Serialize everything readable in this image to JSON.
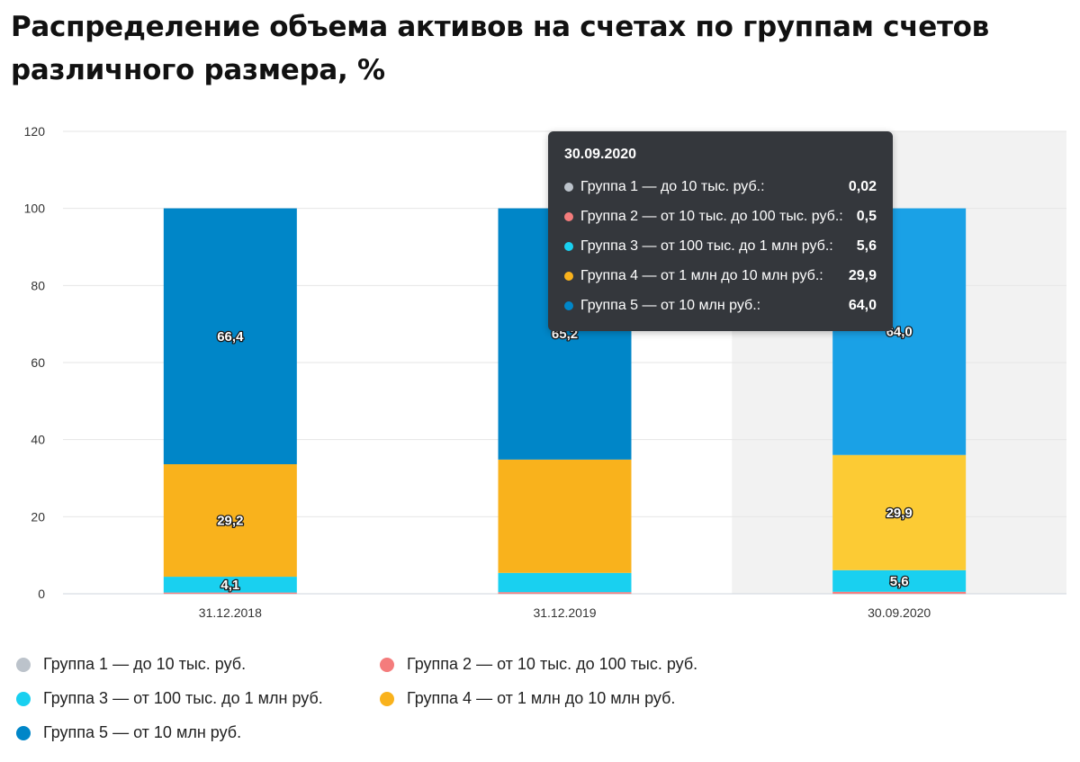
{
  "title": "Распределение объема активов на счетах по группам счетов различного размера, %",
  "colors": {
    "g1": "#bcc3cb",
    "g2": "#f47c7c",
    "g3": "#19d0f0",
    "g4": "#f9b21c",
    "g5": "#0086c8",
    "g4_hover": "#fccb34",
    "g5_hover": "#1aa1e6",
    "grid": "#e6e6e6",
    "hover_bg": "#f2f2f2"
  },
  "chart_data": {
    "type": "bar",
    "stacked": true,
    "title": "Распределение объема активов на счетах по группам счетов различного размера, %",
    "categories": [
      "31.12.2018",
      "31.12.2019",
      "30.09.2020"
    ],
    "ylim": [
      0,
      120
    ],
    "yticks": [
      "0",
      "20",
      "40",
      "60",
      "80",
      "100",
      "120"
    ],
    "grid": true,
    "legend_position": "bottom",
    "series": [
      {
        "name": "Группа 1 — до 10 тыс. руб.",
        "key": "g1",
        "values": [
          0.02,
          0.02,
          0.02
        ],
        "labels": [
          "",
          "",
          ""
        ]
      },
      {
        "name": "Группа 2 — от 10 тыс. до 100 тыс. руб.",
        "key": "g2",
        "values": [
          0.3,
          0.4,
          0.5
        ],
        "labels": [
          "",
          "",
          ""
        ]
      },
      {
        "name": "Группа 3 — от 100 тыс. до 1 млн руб.",
        "key": "g3",
        "values": [
          4.1,
          5.0,
          5.6
        ],
        "labels": [
          "4,1",
          "",
          "5,6"
        ]
      },
      {
        "name": "Группа 4 — от 1 млн до 10 млн руб.",
        "key": "g4",
        "values": [
          29.2,
          29.4,
          29.9
        ],
        "labels": [
          "29,2",
          "",
          "29,9"
        ]
      },
      {
        "name": "Группа 5 — от 10 млн руб.",
        "key": "g5",
        "values": [
          66.4,
          65.2,
          64.0
        ],
        "labels": [
          "66,4",
          "65,2",
          "64,0"
        ]
      }
    ],
    "highlight_index": 2
  },
  "tooltip": {
    "date": "30.09.2020",
    "rows": [
      {
        "label": "Группа 1 — до 10 тыс. руб.:",
        "value": "0,02",
        "key": "g1"
      },
      {
        "label": "Группа 2 — от 10 тыс. до 100 тыс. руб.:",
        "value": "0,5",
        "key": "g2"
      },
      {
        "label": "Группа 3 — от 100 тыс. до 1 млн руб.:",
        "value": "5,6",
        "key": "g3"
      },
      {
        "label": "Группа 4 — от 1 млн до 10 млн руб.:",
        "value": "29,9",
        "key": "g4"
      },
      {
        "label": "Группа 5 — от 10 млн руб.:",
        "value": "64,0",
        "key": "g5"
      }
    ]
  },
  "legend": [
    {
      "label": "Группа 1 — до 10 тыс. руб.",
      "key": "g1"
    },
    {
      "label": "Группа 2 — от 10 тыс. до 100 тыс. руб.",
      "key": "g2"
    },
    {
      "label": "Группа 3 — от 100 тыс. до 1 млн руб.",
      "key": "g3"
    },
    {
      "label": "Группа 4 — от 1 млн до 10 млн руб.",
      "key": "g4"
    },
    {
      "label": "Группа 5 — от 10 млн руб.",
      "key": "g5"
    }
  ]
}
